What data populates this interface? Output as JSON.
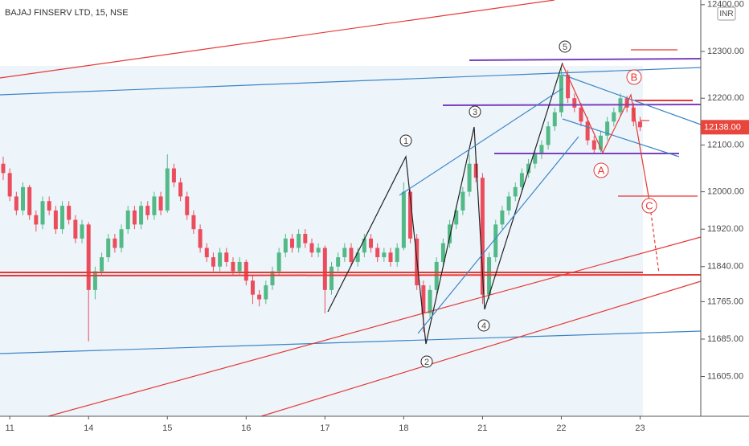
{
  "chart_data": {
    "type": "candlestick",
    "title": "BAJAJ FINSERV LTD, 15, NSE",
    "currency": "INR",
    "up_color": "#53b987",
    "down_color": "#eb4d5c",
    "ylim": [
      11520,
      12410
    ],
    "yticks": [
      {
        "value": 12400,
        "label": "12400.00"
      },
      {
        "value": 12300,
        "label": "12300.00"
      },
      {
        "value": 12200,
        "label": "12200.00"
      },
      {
        "value": 12100,
        "label": "12100.00"
      },
      {
        "value": 12000,
        "label": "12000.00"
      },
      {
        "value": 11920,
        "label": "11920.00"
      },
      {
        "value": 11840,
        "label": "11840.00"
      },
      {
        "value": 11765,
        "label": "11765.00"
      },
      {
        "value": 11685,
        "label": "11685.00"
      },
      {
        "value": 11605,
        "label": "11605.00"
      }
    ],
    "last_price": {
      "value": 12138,
      "label": "12138.00"
    },
    "annotations": [
      "1",
      "2",
      "3",
      "4",
      "5",
      "A",
      "B",
      "C"
    ],
    "categories": [
      null,
      "11",
      null,
      null,
      null,
      null,
      null,
      null,
      null,
      null,
      null,
      null,
      null,
      "14",
      null,
      null,
      null,
      null,
      null,
      null,
      null,
      null,
      null,
      null,
      null,
      "15",
      null,
      null,
      null,
      null,
      null,
      null,
      null,
      null,
      null,
      null,
      null,
      "16",
      null,
      null,
      null,
      null,
      null,
      null,
      null,
      null,
      null,
      null,
      null,
      "17",
      null,
      null,
      null,
      null,
      null,
      null,
      null,
      null,
      null,
      null,
      null,
      "18",
      null,
      null,
      null,
      null,
      null,
      null,
      null,
      null,
      null,
      null,
      null,
      "21",
      null,
      null,
      null,
      null,
      null,
      null,
      null,
      null,
      null,
      null,
      null,
      "22",
      null,
      null,
      null,
      null,
      null,
      null,
      null,
      null,
      null,
      null,
      null,
      "23"
    ],
    "ohlc": [
      [
        12060,
        12075,
        12025,
        12040
      ],
      [
        12040,
        12050,
        11980,
        11990
      ],
      [
        11990,
        12000,
        11950,
        11960
      ],
      [
        11960,
        12020,
        11950,
        12010
      ],
      [
        12010,
        12015,
        11940,
        11950
      ],
      [
        11950,
        11960,
        11915,
        11930
      ],
      [
        11930,
        11990,
        11920,
        11980
      ],
      [
        11980,
        11990,
        11950,
        11960
      ],
      [
        11960,
        11970,
        11910,
        11920
      ],
      [
        11920,
        11980,
        11910,
        11970
      ],
      [
        11970,
        11980,
        11930,
        11940
      ],
      [
        11940,
        11950,
        11890,
        11900
      ],
      [
        11900,
        11940,
        11890,
        11930
      ],
      [
        11930,
        11935,
        11680,
        11790
      ],
      [
        11790,
        11840,
        11770,
        11830
      ],
      [
        11830,
        11870,
        11820,
        11860
      ],
      [
        11860,
        11910,
        11850,
        11900
      ],
      [
        11900,
        11910,
        11870,
        11880
      ],
      [
        11880,
        11930,
        11870,
        11920
      ],
      [
        11920,
        11970,
        11910,
        11960
      ],
      [
        11960,
        11970,
        11920,
        11930
      ],
      [
        11930,
        11980,
        11920,
        11970
      ],
      [
        11970,
        11980,
        11940,
        11950
      ],
      [
        11950,
        12000,
        11940,
        11990
      ],
      [
        11990,
        12000,
        11950,
        11960
      ],
      [
        11960,
        12080,
        11955,
        12050
      ],
      [
        12050,
        12060,
        12010,
        12020
      ],
      [
        12020,
        12030,
        11980,
        11990
      ],
      [
        11990,
        12000,
        11940,
        11950
      ],
      [
        11950,
        11960,
        11910,
        11920
      ],
      [
        11920,
        11930,
        11870,
        11880
      ],
      [
        11880,
        11890,
        11850,
        11860
      ],
      [
        11860,
        11870,
        11830,
        11840
      ],
      [
        11840,
        11880,
        11830,
        11870
      ],
      [
        11870,
        11880,
        11840,
        11850
      ],
      [
        11850,
        11860,
        11820,
        11830
      ],
      [
        11830,
        11860,
        11820,
        11850
      ],
      [
        11850,
        11855,
        11800,
        11810
      ],
      [
        11810,
        11820,
        11760,
        11780
      ],
      [
        11780,
        11790,
        11755,
        11770
      ],
      [
        11770,
        11810,
        11760,
        11800
      ],
      [
        11800,
        11840,
        11790,
        11830
      ],
      [
        11830,
        11880,
        11820,
        11870
      ],
      [
        11870,
        11910,
        11860,
        11900
      ],
      [
        11900,
        11910,
        11870,
        11880
      ],
      [
        11880,
        11920,
        11870,
        11910
      ],
      [
        11910,
        11920,
        11880,
        11890
      ],
      [
        11890,
        11900,
        11860,
        11870
      ],
      [
        11870,
        11890,
        11860,
        11880
      ],
      [
        11880,
        11885,
        11740,
        11790
      ],
      [
        11790,
        11850,
        11780,
        11840
      ],
      [
        11840,
        11870,
        11830,
        11860
      ],
      [
        11860,
        11890,
        11850,
        11880
      ],
      [
        11880,
        11890,
        11840,
        11850
      ],
      [
        11850,
        11880,
        11840,
        11870
      ],
      [
        11870,
        11910,
        11860,
        11900
      ],
      [
        11900,
        11910,
        11870,
        11880
      ],
      [
        11880,
        11890,
        11850,
        11860
      ],
      [
        11860,
        11880,
        11850,
        11870
      ],
      [
        11870,
        11880,
        11840,
        11850
      ],
      [
        11850,
        11890,
        11840,
        11880
      ],
      [
        11880,
        12020,
        11875,
        12000
      ],
      [
        12000,
        12005,
        11890,
        11900
      ],
      [
        11900,
        11910,
        11790,
        11800
      ],
      [
        11800,
        11810,
        11700,
        11740
      ],
      [
        11740,
        11800,
        11730,
        11790
      ],
      [
        11790,
        11860,
        11780,
        11850
      ],
      [
        11850,
        11900,
        11840,
        11890
      ],
      [
        11890,
        11940,
        11880,
        11930
      ],
      [
        11930,
        11970,
        11920,
        11960
      ],
      [
        11960,
        12010,
        11950,
        12000
      ],
      [
        12000,
        12080,
        11990,
        12060
      ],
      [
        12060,
        12070,
        12020,
        12030
      ],
      [
        12030,
        12040,
        11760,
        11780
      ],
      [
        11780,
        11870,
        11770,
        11860
      ],
      [
        11860,
        11940,
        11850,
        11930
      ],
      [
        11930,
        11970,
        11920,
        11960
      ],
      [
        11960,
        12000,
        11950,
        11990
      ],
      [
        11990,
        12020,
        11980,
        12010
      ],
      [
        12010,
        12050,
        12000,
        12040
      ],
      [
        12040,
        12070,
        12030,
        12060
      ],
      [
        12060,
        12090,
        12050,
        12080
      ],
      [
        12080,
        12110,
        12070,
        12100
      ],
      [
        12100,
        12150,
        12090,
        12140
      ],
      [
        12140,
        12180,
        12130,
        12170
      ],
      [
        12170,
        12270,
        12160,
        12250
      ],
      [
        12250,
        12260,
        12190,
        12200
      ],
      [
        12200,
        12210,
        12170,
        12180
      ],
      [
        12180,
        12190,
        12140,
        12150
      ],
      [
        12150,
        12160,
        12100,
        12110
      ],
      [
        12110,
        12120,
        12080,
        12090
      ],
      [
        12090,
        12130,
        12085,
        12120
      ],
      [
        12120,
        12160,
        12110,
        12150
      ],
      [
        12150,
        12180,
        12140,
        12170
      ],
      [
        12170,
        12210,
        12160,
        12200
      ],
      [
        12200,
        12205,
        12170,
        12180
      ],
      [
        12180,
        12190,
        12140,
        12150
      ],
      [
        12150,
        12160,
        12130,
        12138
      ]
    ]
  }
}
